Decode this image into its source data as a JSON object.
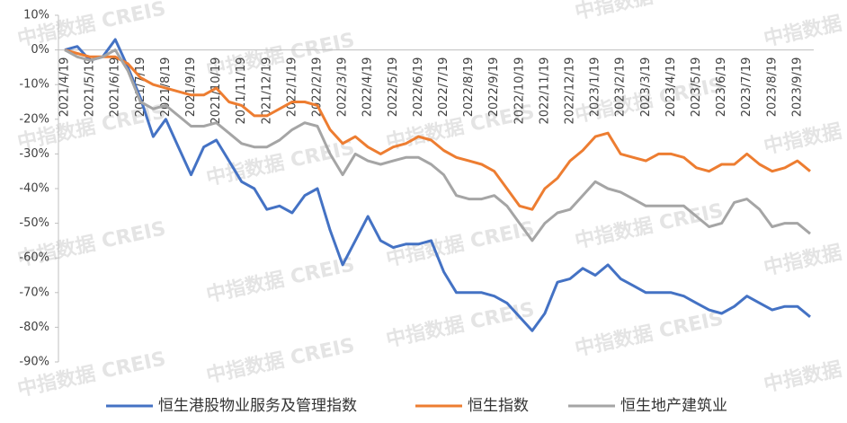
{
  "chart_data": {
    "type": "line",
    "watermark": "中指数据 CREIS",
    "categories": [
      "2021/4/19",
      null,
      "2021/5/19",
      null,
      "2021/6/19",
      null,
      "2021/7/19",
      null,
      "2021/8/19",
      null,
      "2021/9/19",
      null,
      "2021/10/19",
      null,
      "2021/11/19",
      null,
      "2021/12/19",
      null,
      "2022/1/19",
      null,
      "2022/2/19",
      null,
      "2022/3/19",
      null,
      "2022/4/19",
      null,
      "2022/5/19",
      null,
      "2022/6/19",
      null,
      "2022/7/19",
      null,
      "2022/8/19",
      null,
      "2022/9/19",
      null,
      "2022/10/19",
      null,
      "2022/11/19",
      null,
      "2022/12/19",
      null,
      "2023/1/19",
      null,
      "2023/2/19",
      null,
      "2023/3/19",
      null,
      "2023/4/19",
      null,
      "2023/5/19",
      null,
      "2023/6/19",
      null,
      "2023/7/19",
      null,
      "2023/8/19",
      null,
      "2023/9/19",
      null
    ],
    "series": [
      {
        "name": "恒生港股物业服务及管理指数",
        "color": "#4472c4",
        "values": [
          0,
          1,
          -3,
          -2,
          3,
          -5,
          -14,
          -25,
          -20,
          -28,
          -36,
          -28,
          -26,
          -32,
          -38,
          -40,
          -46,
          -45,
          -47,
          -42,
          -40,
          -52,
          -62,
          -55,
          -48,
          -55,
          -57,
          -56,
          -56,
          -55,
          -64,
          -70,
          -70,
          -70,
          -71,
          -73,
          -77,
          -81,
          -76,
          -67,
          -66,
          -63,
          -65,
          -62,
          -66,
          -68,
          -70,
          -70,
          -70,
          -71,
          -73,
          -75,
          -76,
          -74,
          -71,
          -73,
          -75,
          -74,
          -74,
          -77
        ]
      },
      {
        "name": "恒生指数",
        "color": "#ed7d31",
        "values": [
          0,
          -1,
          -2,
          -2,
          -2,
          -4,
          -8,
          -10,
          -11,
          -12,
          -13,
          -13,
          -11,
          -15,
          -16,
          -19,
          -19,
          -17,
          -15,
          -15,
          -16,
          -23,
          -27,
          -25,
          -28,
          -30,
          -28,
          -27,
          -25,
          -26,
          -29,
          -31,
          -32,
          -33,
          -35,
          -40,
          -45,
          -46,
          -40,
          -37,
          -32,
          -29,
          -25,
          -24,
          -30,
          -31,
          -32,
          -30,
          -30,
          -31,
          -34,
          -35,
          -33,
          -33,
          -30,
          -33,
          -35,
          -34,
          -32,
          -35
        ]
      },
      {
        "name": "恒生地产建筑业",
        "color": "#a5a5a5",
        "values": [
          0,
          -2,
          -3,
          -2,
          0,
          -6,
          -15,
          -17,
          -16,
          -19,
          -22,
          -22,
          -21,
          -24,
          -27,
          -28,
          -28,
          -26,
          -23,
          -21,
          -22,
          -30,
          -36,
          -30,
          -32,
          -33,
          -32,
          -31,
          -31,
          -33,
          -36,
          -42,
          -43,
          -43,
          -42,
          -45,
          -50,
          -55,
          -50,
          -47,
          -46,
          -42,
          -38,
          -40,
          -41,
          -43,
          -45,
          -45,
          -45,
          -45,
          -48,
          -51,
          -50,
          -44,
          -43,
          -46,
          -51,
          -50,
          -50,
          -53
        ]
      }
    ],
    "ylim": [
      -90,
      10
    ],
    "yticks": [
      {
        "value": 10,
        "label": "10%"
      },
      {
        "value": 0,
        "label": "0%"
      },
      {
        "value": -10,
        "label": "-10%"
      },
      {
        "value": -20,
        "label": "-20%"
      },
      {
        "value": -30,
        "label": "-30%"
      },
      {
        "value": -40,
        "label": "-40%"
      },
      {
        "value": -50,
        "label": "-50%"
      },
      {
        "value": -60,
        "label": "-60%"
      },
      {
        "value": -70,
        "label": "-70%"
      },
      {
        "value": -80,
        "label": "-80%"
      },
      {
        "value": -90,
        "label": "-90%"
      }
    ],
    "legend": "bottom"
  }
}
